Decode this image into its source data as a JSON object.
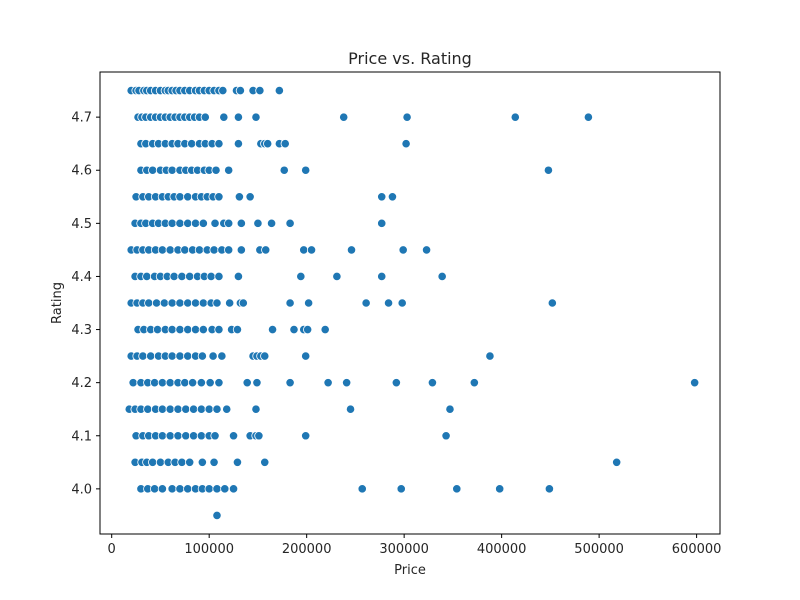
{
  "chart_data": {
    "type": "scatter",
    "title": "Price vs. Rating",
    "xlabel": "Price",
    "ylabel": "Rating",
    "xlim": [
      -12000,
      624000
    ],
    "ylim": [
      3.915,
      4.785
    ],
    "xticks": [
      0,
      100000,
      200000,
      300000,
      400000,
      500000,
      600000
    ],
    "xtick_labels": [
      "0",
      "100000",
      "200000",
      "300000",
      "400000",
      "500000",
      "600000"
    ],
    "yticks": [
      4.0,
      4.1,
      4.2,
      4.3,
      4.4,
      4.5,
      4.6,
      4.7
    ],
    "ytick_labels": [
      "4.0",
      "4.1",
      "4.2",
      "4.3",
      "4.4",
      "4.5",
      "4.6",
      "4.7"
    ],
    "grid": false,
    "color": "#1f77b4",
    "series": [
      {
        "points": [
          [
            20000,
            4.75
          ],
          [
            25000,
            4.75
          ],
          [
            28000,
            4.75
          ],
          [
            33000,
            4.75
          ],
          [
            36000,
            4.75
          ],
          [
            40000,
            4.75
          ],
          [
            45000,
            4.75
          ],
          [
            50000,
            4.75
          ],
          [
            55000,
            4.75
          ],
          [
            58000,
            4.75
          ],
          [
            62000,
            4.75
          ],
          [
            66000,
            4.75
          ],
          [
            70000,
            4.75
          ],
          [
            75000,
            4.75
          ],
          [
            80000,
            4.75
          ],
          [
            86000,
            4.75
          ],
          [
            90000,
            4.75
          ],
          [
            95000,
            4.75
          ],
          [
            100000,
            4.75
          ],
          [
            105000,
            4.75
          ],
          [
            110000,
            4.75
          ],
          [
            114000,
            4.75
          ],
          [
            128000,
            4.75
          ],
          [
            132000,
            4.75
          ],
          [
            145000,
            4.75
          ],
          [
            152000,
            4.75
          ],
          [
            172000,
            4.75
          ],
          [
            27000,
            4.7
          ],
          [
            31000,
            4.7
          ],
          [
            35000,
            4.7
          ],
          [
            40000,
            4.7
          ],
          [
            45000,
            4.7
          ],
          [
            50000,
            4.7
          ],
          [
            55000,
            4.7
          ],
          [
            60000,
            4.7
          ],
          [
            65000,
            4.7
          ],
          [
            70000,
            4.7
          ],
          [
            75000,
            4.7
          ],
          [
            80000,
            4.7
          ],
          [
            85000,
            4.7
          ],
          [
            90000,
            4.7
          ],
          [
            96000,
            4.7
          ],
          [
            115000,
            4.7
          ],
          [
            130000,
            4.7
          ],
          [
            148000,
            4.7
          ],
          [
            238000,
            4.7
          ],
          [
            303000,
            4.7
          ],
          [
            414000,
            4.7
          ],
          [
            489000,
            4.7
          ],
          [
            30000,
            4.65
          ],
          [
            35000,
            4.65
          ],
          [
            42000,
            4.65
          ],
          [
            48000,
            4.65
          ],
          [
            55000,
            4.65
          ],
          [
            62000,
            4.65
          ],
          [
            68000,
            4.65
          ],
          [
            75000,
            4.65
          ],
          [
            82000,
            4.65
          ],
          [
            90000,
            4.65
          ],
          [
            96000,
            4.65
          ],
          [
            103000,
            4.65
          ],
          [
            110000,
            4.65
          ],
          [
            130000,
            4.65
          ],
          [
            153000,
            4.65
          ],
          [
            157000,
            4.65
          ],
          [
            160000,
            4.65
          ],
          [
            172000,
            4.65
          ],
          [
            178000,
            4.65
          ],
          [
            302000,
            4.65
          ],
          [
            30000,
            4.6
          ],
          [
            36000,
            4.6
          ],
          [
            42000,
            4.6
          ],
          [
            50000,
            4.6
          ],
          [
            56000,
            4.6
          ],
          [
            62000,
            4.6
          ],
          [
            70000,
            4.6
          ],
          [
            76000,
            4.6
          ],
          [
            82000,
            4.6
          ],
          [
            88000,
            4.6
          ],
          [
            95000,
            4.6
          ],
          [
            100000,
            4.6
          ],
          [
            107000,
            4.6
          ],
          [
            120000,
            4.6
          ],
          [
            177000,
            4.6
          ],
          [
            199000,
            4.6
          ],
          [
            448000,
            4.6
          ],
          [
            25000,
            4.55
          ],
          [
            32000,
            4.55
          ],
          [
            38000,
            4.55
          ],
          [
            45000,
            4.55
          ],
          [
            52000,
            4.55
          ],
          [
            58000,
            4.55
          ],
          [
            64000,
            4.55
          ],
          [
            70000,
            4.55
          ],
          [
            78000,
            4.55
          ],
          [
            86000,
            4.55
          ],
          [
            92000,
            4.55
          ],
          [
            98000,
            4.55
          ],
          [
            104000,
            4.55
          ],
          [
            110000,
            4.55
          ],
          [
            131000,
            4.55
          ],
          [
            142000,
            4.55
          ],
          [
            277000,
            4.55
          ],
          [
            288000,
            4.55
          ],
          [
            24000,
            4.5
          ],
          [
            30000,
            4.5
          ],
          [
            35000,
            4.5
          ],
          [
            42000,
            4.5
          ],
          [
            48000,
            4.5
          ],
          [
            55000,
            4.5
          ],
          [
            62000,
            4.5
          ],
          [
            70000,
            4.5
          ],
          [
            78000,
            4.5
          ],
          [
            86000,
            4.5
          ],
          [
            94000,
            4.5
          ],
          [
            106000,
            4.5
          ],
          [
            115000,
            4.5
          ],
          [
            120000,
            4.5
          ],
          [
            133000,
            4.5
          ],
          [
            150000,
            4.5
          ],
          [
            164000,
            4.5
          ],
          [
            183000,
            4.5
          ],
          [
            277000,
            4.5
          ],
          [
            20000,
            4.45
          ],
          [
            26000,
            4.45
          ],
          [
            32000,
            4.45
          ],
          [
            38000,
            4.45
          ],
          [
            45000,
            4.45
          ],
          [
            52000,
            4.45
          ],
          [
            60000,
            4.45
          ],
          [
            68000,
            4.45
          ],
          [
            75000,
            4.45
          ],
          [
            83000,
            4.45
          ],
          [
            90000,
            4.45
          ],
          [
            98000,
            4.45
          ],
          [
            105000,
            4.45
          ],
          [
            113000,
            4.45
          ],
          [
            120000,
            4.45
          ],
          [
            133000,
            4.45
          ],
          [
            152000,
            4.45
          ],
          [
            158000,
            4.45
          ],
          [
            197000,
            4.45
          ],
          [
            205000,
            4.45
          ],
          [
            246000,
            4.45
          ],
          [
            299000,
            4.45
          ],
          [
            323000,
            4.45
          ],
          [
            24000,
            4.4
          ],
          [
            30000,
            4.4
          ],
          [
            36000,
            4.4
          ],
          [
            44000,
            4.4
          ],
          [
            50000,
            4.4
          ],
          [
            57000,
            4.4
          ],
          [
            64000,
            4.4
          ],
          [
            72000,
            4.4
          ],
          [
            80000,
            4.4
          ],
          [
            88000,
            4.4
          ],
          [
            95000,
            4.4
          ],
          [
            102000,
            4.4
          ],
          [
            110000,
            4.4
          ],
          [
            130000,
            4.4
          ],
          [
            194000,
            4.4
          ],
          [
            231000,
            4.4
          ],
          [
            277000,
            4.4
          ],
          [
            339000,
            4.4
          ],
          [
            20000,
            4.35
          ],
          [
            26000,
            4.35
          ],
          [
            32000,
            4.35
          ],
          [
            38000,
            4.35
          ],
          [
            46000,
            4.35
          ],
          [
            54000,
            4.35
          ],
          [
            62000,
            4.35
          ],
          [
            70000,
            4.35
          ],
          [
            78000,
            4.35
          ],
          [
            86000,
            4.35
          ],
          [
            94000,
            4.35
          ],
          [
            102000,
            4.35
          ],
          [
            108000,
            4.35
          ],
          [
            121000,
            4.35
          ],
          [
            132000,
            4.35
          ],
          [
            135000,
            4.35
          ],
          [
            183000,
            4.35
          ],
          [
            202000,
            4.35
          ],
          [
            261000,
            4.35
          ],
          [
            284000,
            4.35
          ],
          [
            298000,
            4.35
          ],
          [
            452000,
            4.35
          ],
          [
            27000,
            4.3
          ],
          [
            33000,
            4.3
          ],
          [
            40000,
            4.3
          ],
          [
            47000,
            4.3
          ],
          [
            55000,
            4.3
          ],
          [
            62000,
            4.3
          ],
          [
            70000,
            4.3
          ],
          [
            78000,
            4.3
          ],
          [
            86000,
            4.3
          ],
          [
            94000,
            4.3
          ],
          [
            103000,
            4.3
          ],
          [
            110000,
            4.3
          ],
          [
            123000,
            4.3
          ],
          [
            129000,
            4.3
          ],
          [
            165000,
            4.3
          ],
          [
            187000,
            4.3
          ],
          [
            197000,
            4.3
          ],
          [
            201000,
            4.3
          ],
          [
            219000,
            4.3
          ],
          [
            20000,
            4.25
          ],
          [
            26000,
            4.25
          ],
          [
            32000,
            4.25
          ],
          [
            40000,
            4.25
          ],
          [
            48000,
            4.25
          ],
          [
            55000,
            4.25
          ],
          [
            62000,
            4.25
          ],
          [
            70000,
            4.25
          ],
          [
            78000,
            4.25
          ],
          [
            86000,
            4.25
          ],
          [
            93000,
            4.25
          ],
          [
            104000,
            4.25
          ],
          [
            113000,
            4.25
          ],
          [
            145000,
            4.25
          ],
          [
            149000,
            4.25
          ],
          [
            153000,
            4.25
          ],
          [
            157000,
            4.25
          ],
          [
            199000,
            4.25
          ],
          [
            388000,
            4.25
          ],
          [
            22000,
            4.2
          ],
          [
            30000,
            4.2
          ],
          [
            37000,
            4.2
          ],
          [
            44000,
            4.2
          ],
          [
            52000,
            4.2
          ],
          [
            60000,
            4.2
          ],
          [
            68000,
            4.2
          ],
          [
            75000,
            4.2
          ],
          [
            83000,
            4.2
          ],
          [
            92000,
            4.2
          ],
          [
            101000,
            4.2
          ],
          [
            110000,
            4.2
          ],
          [
            139000,
            4.2
          ],
          [
            149000,
            4.2
          ],
          [
            183000,
            4.2
          ],
          [
            222000,
            4.2
          ],
          [
            241000,
            4.2
          ],
          [
            292000,
            4.2
          ],
          [
            329000,
            4.2
          ],
          [
            372000,
            4.2
          ],
          [
            598000,
            4.2
          ],
          [
            18000,
            4.15
          ],
          [
            24000,
            4.15
          ],
          [
            30000,
            4.15
          ],
          [
            37000,
            4.15
          ],
          [
            45000,
            4.15
          ],
          [
            52000,
            4.15
          ],
          [
            60000,
            4.15
          ],
          [
            68000,
            4.15
          ],
          [
            76000,
            4.15
          ],
          [
            84000,
            4.15
          ],
          [
            92000,
            4.15
          ],
          [
            100000,
            4.15
          ],
          [
            108000,
            4.15
          ],
          [
            118000,
            4.15
          ],
          [
            148000,
            4.15
          ],
          [
            245000,
            4.15
          ],
          [
            347000,
            4.15
          ],
          [
            25000,
            4.1
          ],
          [
            32000,
            4.1
          ],
          [
            38000,
            4.1
          ],
          [
            45000,
            4.1
          ],
          [
            52000,
            4.1
          ],
          [
            60000,
            4.1
          ],
          [
            68000,
            4.1
          ],
          [
            76000,
            4.1
          ],
          [
            84000,
            4.1
          ],
          [
            92000,
            4.1
          ],
          [
            100000,
            4.1
          ],
          [
            106000,
            4.1
          ],
          [
            125000,
            4.1
          ],
          [
            142000,
            4.1
          ],
          [
            148000,
            4.1
          ],
          [
            151000,
            4.1
          ],
          [
            199000,
            4.1
          ],
          [
            343000,
            4.1
          ],
          [
            24000,
            4.05
          ],
          [
            31000,
            4.05
          ],
          [
            36000,
            4.05
          ],
          [
            42000,
            4.05
          ],
          [
            50000,
            4.05
          ],
          [
            58000,
            4.05
          ],
          [
            65000,
            4.05
          ],
          [
            72000,
            4.05
          ],
          [
            80000,
            4.05
          ],
          [
            93000,
            4.05
          ],
          [
            105000,
            4.05
          ],
          [
            129000,
            4.05
          ],
          [
            157000,
            4.05
          ],
          [
            518000,
            4.05
          ],
          [
            30000,
            4.0
          ],
          [
            37000,
            4.0
          ],
          [
            44000,
            4.0
          ],
          [
            52000,
            4.0
          ],
          [
            62000,
            4.0
          ],
          [
            70000,
            4.0
          ],
          [
            78000,
            4.0
          ],
          [
            86000,
            4.0
          ],
          [
            93000,
            4.0
          ],
          [
            100000,
            4.0
          ],
          [
            108000,
            4.0
          ],
          [
            116000,
            4.0
          ],
          [
            125000,
            4.0
          ],
          [
            257000,
            4.0
          ],
          [
            297000,
            4.0
          ],
          [
            354000,
            4.0
          ],
          [
            398000,
            4.0
          ],
          [
            449000,
            4.0
          ],
          [
            108000,
            3.95
          ]
        ]
      }
    ]
  }
}
